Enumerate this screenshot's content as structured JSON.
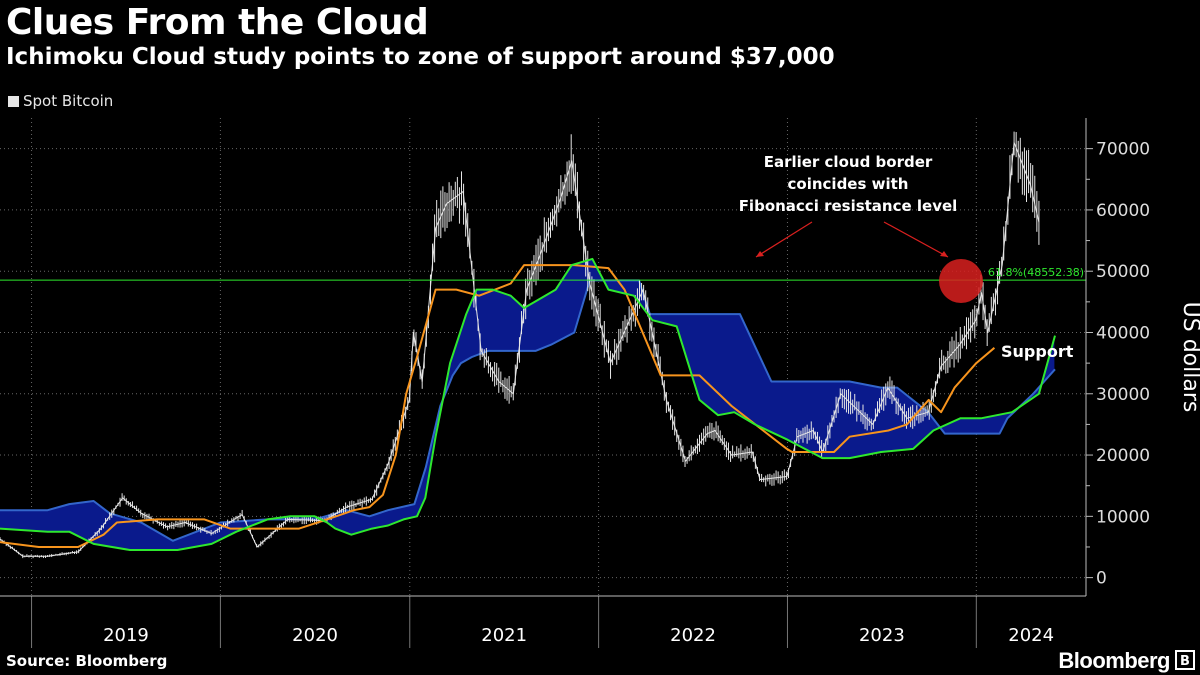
{
  "header": {
    "title": "Clues From the Cloud",
    "subtitle": "Ichimoku Cloud study points to zone of support around $37,000"
  },
  "legend": {
    "label": "Spot Bitcoin"
  },
  "footer": {
    "source": "Source: Bloomberg",
    "brand": "Bloomberg",
    "badge": "B"
  },
  "chart_data": {
    "type": "line",
    "title": "Clues From the Cloud",
    "ylabel": "US dollars",
    "ylim": [
      -3000,
      75000
    ],
    "xlim": [
      "2018-11-01",
      "2024-07-31"
    ],
    "yticks": [
      0,
      10000,
      20000,
      30000,
      40000,
      50000,
      60000,
      70000
    ],
    "ytick_labels": [
      "0",
      "10000",
      "20000",
      "30000",
      "40000",
      "50000",
      "60000",
      "70000"
    ],
    "x_year_labels": [
      "2019",
      "2020",
      "2021",
      "2022",
      "2023",
      "2024"
    ],
    "grid": true,
    "legend_position": "top-left",
    "colors": {
      "price": "#e6e6e6",
      "orange": "#f7941d",
      "green": "#2ee82e",
      "cloud_fill": "#0a1a8c",
      "cloud_edge": "#3366cc",
      "fib": "#2ee82e",
      "circle": "#d9201f",
      "arrow": "#d9201f"
    },
    "series": [
      {
        "name": "Spot Bitcoin",
        "kind": "price",
        "x": [
          "2018-11-01",
          "2018-12-15",
          "2019-02-01",
          "2019-04-01",
          "2019-05-15",
          "2019-06-26",
          "2019-08-01",
          "2019-09-20",
          "2019-10-25",
          "2019-12-15",
          "2020-02-12",
          "2020-03-12",
          "2020-04-01",
          "2020-05-10",
          "2020-07-20",
          "2020-09-01",
          "2020-10-20",
          "2020-11-20",
          "2020-12-31",
          "2021-01-08",
          "2021-01-25",
          "2021-02-20",
          "2021-03-13",
          "2021-04-14",
          "2021-05-19",
          "2021-06-22",
          "2021-07-20",
          "2021-08-15",
          "2021-09-07",
          "2021-10-20",
          "2021-11-10",
          "2021-12-15",
          "2022-01-24",
          "2022-03-28",
          "2022-05-12",
          "2022-06-18",
          "2022-07-30",
          "2022-08-14",
          "2022-09-15",
          "2022-10-25",
          "2022-11-09",
          "2022-12-31",
          "2023-01-20",
          "2023-02-20",
          "2023-03-10",
          "2023-04-14",
          "2023-06-15",
          "2023-07-14",
          "2023-08-20",
          "2023-09-30",
          "2023-10-25",
          "2023-11-30",
          "2023-12-31",
          "2024-01-11",
          "2024-01-23",
          "2024-02-20",
          "2024-03-14",
          "2024-04-15",
          "2024-05-01"
        ],
        "y": [
          6300,
          3500,
          3500,
          4200,
          8000,
          13000,
          10500,
          8300,
          9000,
          7200,
          10300,
          5000,
          6500,
          9500,
          9300,
          11500,
          12800,
          18500,
          29000,
          40000,
          32000,
          57000,
          61000,
          63000,
          37000,
          32000,
          30000,
          47000,
          52000,
          62000,
          68000,
          48000,
          35000,
          47000,
          29000,
          19000,
          23500,
          24000,
          20000,
          20500,
          16000,
          16500,
          23000,
          24000,
          20500,
          30000,
          25000,
          31000,
          26000,
          27000,
          34500,
          38000,
          42000,
          46500,
          40000,
          51000,
          71000,
          64000,
          58000
        ]
      },
      {
        "name": "",
        "kind": "orange",
        "x": [
          "2018-11-01",
          "2019-01-15",
          "2019-04-01",
          "2019-05-20",
          "2019-06-15",
          "2019-09-01",
          "2019-12-01",
          "2020-01-20",
          "2020-06-01",
          "2020-07-25",
          "2020-09-15",
          "2020-10-15",
          "2020-11-10",
          "2020-12-05",
          "2020-12-25",
          "2021-01-15",
          "2021-02-20",
          "2021-04-01",
          "2021-05-15",
          "2021-06-15",
          "2021-07-15",
          "2021-08-10",
          "2021-10-15",
          "2021-11-15",
          "2022-01-20",
          "2022-02-20",
          "2022-05-01",
          "2022-06-15",
          "2022-07-15",
          "2022-09-15",
          "2022-12-31",
          "2023-01-10",
          "2023-04-01",
          "2023-05-01",
          "2023-07-15",
          "2023-08-20",
          "2023-10-01",
          "2023-10-25",
          "2023-11-20",
          "2024-01-01",
          "2024-02-05"
        ],
        "y": [
          5800,
          5000,
          5000,
          7000,
          9000,
          9500,
          9500,
          8000,
          8000,
          9500,
          11000,
          11500,
          13500,
          20000,
          30000,
          36000,
          47000,
          47000,
          46000,
          47000,
          48000,
          51000,
          51000,
          51000,
          50500,
          47000,
          33000,
          33000,
          33000,
          28000,
          21000,
          20500,
          20500,
          23000,
          24000,
          25000,
          29000,
          27000,
          31000,
          35000,
          37500
        ]
      },
      {
        "name": "",
        "kind": "green",
        "x": [
          "2018-11-01",
          "2019-02-01",
          "2019-03-15",
          "2019-05-01",
          "2019-07-10",
          "2019-08-20",
          "2019-10-10",
          "2019-12-15",
          "2020-02-01",
          "2020-04-01",
          "2020-05-15",
          "2020-07-01",
          "2020-07-25",
          "2020-08-10",
          "2020-09-10",
          "2020-10-20",
          "2020-11-20",
          "2020-12-20",
          "2021-01-15",
          "2021-01-31",
          "2021-02-20",
          "2021-03-20",
          "2021-04-20",
          "2021-05-10",
          "2021-06-10",
          "2021-07-15",
          "2021-08-10",
          "2021-10-10",
          "2021-11-10",
          "2021-12-20",
          "2022-01-20",
          "2022-03-10",
          "2022-04-15",
          "2022-06-01",
          "2022-07-15",
          "2022-08-20",
          "2022-09-20",
          "2022-10-30",
          "2023-01-01",
          "2023-03-10",
          "2023-05-01",
          "2023-07-01",
          "2023-09-01",
          "2023-10-10",
          "2023-12-01",
          "2024-01-10",
          "2024-03-10",
          "2024-05-01",
          "2024-06-01"
        ],
        "y": [
          8000,
          7500,
          7500,
          5500,
          4500,
          4500,
          4500,
          5500,
          7500,
          9500,
          10000,
          10000,
          9000,
          8000,
          7000,
          8000,
          8500,
          9500,
          10000,
          13000,
          23000,
          35000,
          43000,
          47000,
          47000,
          46000,
          44000,
          47000,
          51000,
          52000,
          47000,
          46000,
          42000,
          41000,
          29000,
          26500,
          27000,
          25000,
          22500,
          19500,
          19500,
          20500,
          21000,
          24000,
          26000,
          26000,
          27000,
          30000,
          39500
        ]
      },
      {
        "name": "",
        "kind": "cloudB",
        "x": [
          "2018-11-01",
          "2019-02-01",
          "2019-03-15",
          "2019-05-01",
          "2019-06-01",
          "2019-08-01",
          "2019-10-01",
          "2020-01-01",
          "2020-04-01",
          "2020-07-01",
          "2020-09-01",
          "2020-10-15",
          "2020-11-20",
          "2021-01-10",
          "2021-02-01",
          "2021-03-01",
          "2021-03-25",
          "2021-04-10",
          "2021-05-01",
          "2021-06-01",
          "2021-09-01",
          "2021-10-01",
          "2021-11-15",
          "2021-12-15",
          "2022-02-01",
          "2022-03-20",
          "2022-04-10",
          "2022-06-01",
          "2022-09-01",
          "2022-10-01",
          "2022-12-01",
          "2023-03-01",
          "2023-05-01",
          "2023-07-01",
          "2023-08-01",
          "2023-09-30",
          "2023-11-01",
          "2024-02-15",
          "2024-03-01",
          "2024-04-20",
          "2024-06-01"
        ],
        "y": [
          11000,
          11000,
          12000,
          12500,
          10500,
          9000,
          6000,
          9000,
          9500,
          9500,
          11000,
          10000,
          11000,
          12000,
          18000,
          28000,
          33000,
          35000,
          36000,
          37000,
          37000,
          38000,
          40000,
          48500,
          48500,
          48500,
          43000,
          43000,
          43000,
          43000,
          32000,
          32000,
          32000,
          31000,
          31000,
          27000,
          23500,
          23500,
          26000,
          30000,
          34000
        ]
      }
    ],
    "fibonacci": {
      "value": 48552.38,
      "label": "61.8%(48552.38)"
    },
    "annotations": [
      {
        "text_lines": [
          "Earlier cloud border",
          "coincides with",
          "Fibonacci resistance level"
        ]
      },
      {
        "text": "Support"
      }
    ]
  }
}
